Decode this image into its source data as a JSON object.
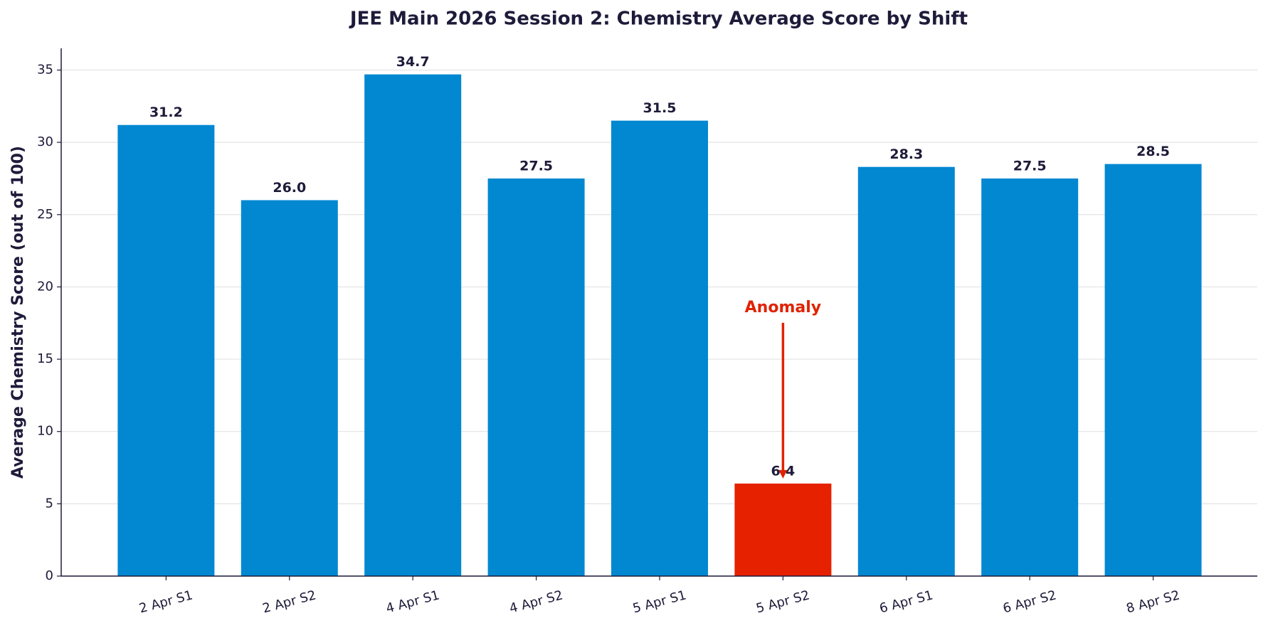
{
  "chart_data": {
    "type": "bar",
    "title": "JEE Main 2026 Session 2: Chemistry Average Score by Shift",
    "y_label": "Average Chemistry Score (out of 100)",
    "categories": [
      "2 Apr S1",
      "2 Apr S2",
      "4 Apr S1",
      "4 Apr S2",
      "5 Apr S1",
      "5 Apr S2",
      "6 Apr S1",
      "6 Apr S2",
      "8 Apr S2"
    ],
    "values": [
      31.2,
      26.0,
      34.7,
      27.5,
      31.5,
      6.4,
      28.3,
      27.5,
      28.5
    ],
    "value_labels": [
      "31.2",
      "26.0",
      "34.7",
      "27.5",
      "31.5",
      "6.4",
      "28.3",
      "27.5",
      "28.5"
    ],
    "colors": [
      "#0288d1",
      "#0288d1",
      "#0288d1",
      "#0288d1",
      "#0288d1",
      "#e62100",
      "#0288d1",
      "#0288d1",
      "#0288d1"
    ],
    "annotation": "Anomaly",
    "annotation_color": "#e02200",
    "ylim": [
      0,
      36.5
    ],
    "yticks": [
      0,
      5,
      10,
      15,
      20,
      25,
      30,
      35
    ],
    "grid": true
  }
}
